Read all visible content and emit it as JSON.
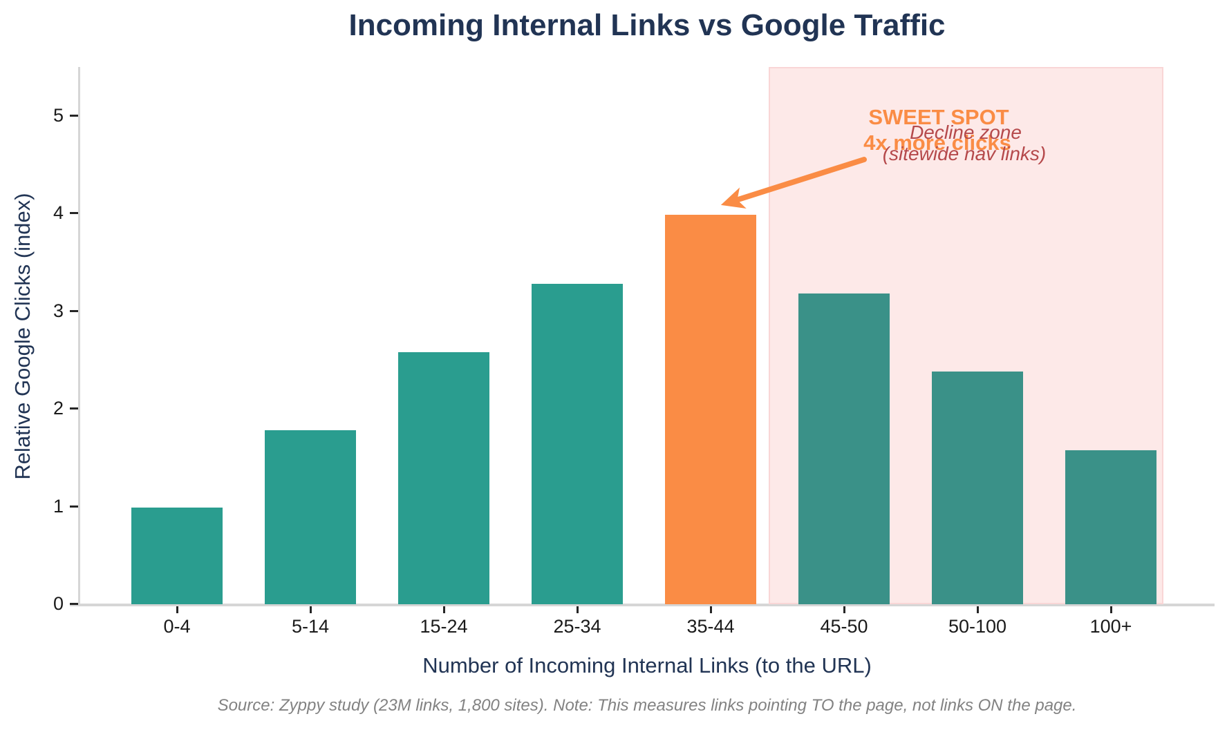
{
  "chart_data": {
    "type": "bar",
    "title": "Incoming Internal Links vs Google Traffic",
    "xlabel": "Number of Incoming Internal Links (to the URL)",
    "ylabel": "Relative Google Clicks (index)",
    "categories": [
      "0-4",
      "5-14",
      "15-24",
      "25-34",
      "35-44",
      "45-50",
      "50-100",
      "100+"
    ],
    "values": [
      0.99,
      1.78,
      2.58,
      3.28,
      3.99,
      3.18,
      2.38,
      1.58
    ],
    "bar_colors": [
      "#2a9d8f",
      "#2a9d8f",
      "#2a9d8f",
      "#2a9d8f",
      "#fa8c45",
      "#3a9188",
      "#3a9188",
      "#3a9188"
    ],
    "highlight_index": 4,
    "ylim": [
      0,
      5.5
    ],
    "yticks": [
      0,
      1,
      2,
      3,
      4,
      5
    ],
    "grid": false,
    "legend": "none",
    "decline_zone_categories": [
      "45-50",
      "50-100",
      "100+"
    ],
    "annotations": {
      "sweet_spot": {
        "line1": "SWEET SPOT",
        "line2": "4x more clicks",
        "color": "#fa8c45",
        "points_to_category": "35-44"
      },
      "decline_zone": {
        "line1": "Decline zone",
        "line2": "(sitewide nav links)",
        "color": "#b5494b"
      }
    },
    "source_note": "Source: Zyppy study (23M links, 1,800 sites). Note: This measures links pointing TO the page, not links ON the page."
  },
  "colors": {
    "title_navy": "#213454",
    "axis_label_navy": "#213454",
    "tick_black": "#1a1a1a",
    "spine_gray": "#d6d6d6",
    "bar_teal": "#2a9d8f",
    "bar_teal_in_zone": "#3a9188",
    "bar_orange": "#fa8c45",
    "zone_pink": "#fde9e8",
    "annotation_red": "#b5494b",
    "arrow_orange": "#fa8c45",
    "source_gray": "#828282",
    "background": "#ffffff"
  }
}
